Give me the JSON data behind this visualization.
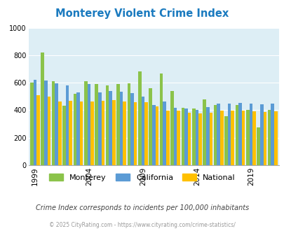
{
  "title": "Monterey Violent Crime Index",
  "years": [
    1999,
    2000,
    2001,
    2002,
    2003,
    2004,
    2005,
    2006,
    2007,
    2008,
    2009,
    2010,
    2011,
    2012,
    2013,
    2014,
    2015,
    2016,
    2017,
    2018,
    2019,
    2020,
    2021
  ],
  "monterey": [
    600,
    820,
    610,
    435,
    520,
    610,
    590,
    580,
    590,
    595,
    680,
    560,
    665,
    540,
    415,
    410,
    480,
    440,
    355,
    440,
    400,
    275,
    400
  ],
  "california": [
    620,
    615,
    595,
    580,
    530,
    590,
    530,
    540,
    535,
    525,
    500,
    440,
    465,
    415,
    410,
    400,
    425,
    450,
    450,
    455,
    450,
    445,
    450
  ],
  "national": [
    510,
    500,
    465,
    470,
    465,
    465,
    470,
    475,
    465,
    460,
    460,
    430,
    395,
    395,
    380,
    375,
    380,
    395,
    395,
    395,
    390,
    385,
    390
  ],
  "monterey_color": "#8bc34a",
  "california_color": "#5b9bd5",
  "national_color": "#ffc000",
  "bg_color": "#ddeef5",
  "ylim": [
    0,
    1000
  ],
  "yticks": [
    0,
    200,
    400,
    600,
    800,
    1000
  ],
  "xtick_labels": [
    "1999",
    "2004",
    "2009",
    "2014",
    "2019"
  ],
  "xtick_years": [
    1999,
    2004,
    2009,
    2014,
    2019
  ],
  "subtitle": "Crime Index corresponds to incidents per 100,000 inhabitants",
  "footer": "© 2025 CityRating.com - https://www.cityrating.com/crime-statistics/",
  "legend_labels": [
    "Monterey",
    "California",
    "National"
  ],
  "title_color": "#1a7abf",
  "subtitle_color": "#444444",
  "footer_color": "#999999"
}
